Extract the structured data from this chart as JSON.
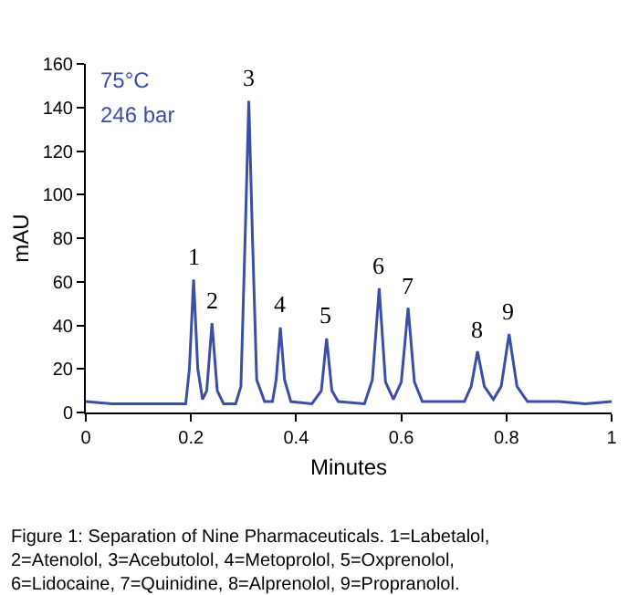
{
  "chart_data": {
    "type": "line",
    "xlabel": "Minutes",
    "ylabel": "mAU",
    "xlim": [
      0,
      1
    ],
    "xticks": [
      0,
      0.2,
      0.4,
      0.6,
      0.8,
      1
    ],
    "ylim": [
      0,
      160
    ],
    "yticks": [
      0,
      20,
      40,
      60,
      80,
      100,
      120,
      140,
      160
    ],
    "marker": "none",
    "line_style": "solid",
    "series": [
      {
        "color": "#3d4ea6",
        "x": [
          0,
          0.05,
          0.1,
          0.15,
          0.18,
          0.19,
          0.197,
          0.205,
          0.213,
          0.222,
          0.23,
          0.24,
          0.25,
          0.262,
          0.285,
          0.295,
          0.303,
          0.31,
          0.317,
          0.325,
          0.34,
          0.355,
          0.362,
          0.37,
          0.378,
          0.39,
          0.43,
          0.448,
          0.458,
          0.468,
          0.48,
          0.53,
          0.545,
          0.558,
          0.57,
          0.585,
          0.6,
          0.613,
          0.625,
          0.64,
          0.72,
          0.733,
          0.745,
          0.758,
          0.775,
          0.79,
          0.805,
          0.82,
          0.84,
          0.9,
          0.95,
          1.0
        ],
        "values": [
          5,
          4,
          4,
          4,
          4,
          4,
          20,
          61,
          20,
          6,
          10,
          41,
          10,
          4,
          4,
          12,
          80,
          143,
          80,
          15,
          5,
          5,
          15,
          39,
          15,
          5,
          4,
          10,
          34,
          10,
          5,
          4,
          15,
          57,
          14,
          6,
          14,
          48,
          14,
          5,
          5,
          12,
          28,
          12,
          6,
          12,
          36,
          12,
          5,
          5,
          4,
          5
        ]
      }
    ],
    "annotations": [
      "75°C",
      "246 bar",
      {
        "text": "1",
        "x": 0.205,
        "y": 61
      },
      {
        "text": "2",
        "x": 0.24,
        "y": 41
      },
      {
        "text": "3",
        "x": 0.31,
        "y": 143
      },
      {
        "text": "4",
        "x": 0.37,
        "y": 39
      },
      {
        "text": "5",
        "x": 0.458,
        "y": 34
      },
      {
        "text": "6",
        "x": 0.558,
        "y": 57
      },
      {
        "text": "7",
        "x": 0.613,
        "y": 48
      },
      {
        "text": "8",
        "x": 0.745,
        "y": 28
      },
      {
        "text": "9",
        "x": 0.805,
        "y": 36
      },
      "Figure 1: Separation of Nine Pharmaceuticals. 1=Labetalol, 2=Atenolol, 3=Acebutolol, 4=Metoprolol, 5=Oxprenolol, 6=Lidocaine, 7=Quinidine, 8=Alprenolol, 9=Propranolol."
    ]
  }
}
